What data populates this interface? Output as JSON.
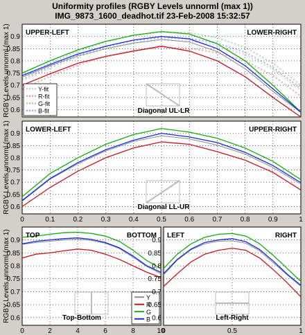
{
  "figure": {
    "title_line1": "Uniformity profiles  (RGBY Levels unnorml (max 1))",
    "title_line2": "IMG_9873_1600_deadhot.tif   23-Feb-2008 15:32:57",
    "background": "#d4d0c8"
  },
  "colors": {
    "Y": "#8a8a8a",
    "R": "#c8141e",
    "G": "#14aa14",
    "B": "#1428e6"
  },
  "chart_data": [
    {
      "id": "diag-ul-lr",
      "type": "line",
      "ylabel": "RGBY Levels unnorml (max 1)",
      "corner_left": "UPPER-LEFT",
      "corner_right": "LOWER-RIGHT",
      "caption": "Diagonal UL-LR",
      "thumb": "diag-down",
      "xlim": [
        0,
        1
      ],
      "ylim": [
        0.57,
        0.95
      ],
      "xticks": [],
      "yticks": [
        0.6,
        0.65,
        0.7,
        0.75,
        0.8,
        0.85,
        0.9
      ],
      "legend": {
        "position": "lower-left",
        "style": "dotted",
        "labels": [
          "Y-fit",
          "R-fit",
          "G-fit",
          "B-fit"
        ]
      },
      "x": [
        0,
        0.1,
        0.2,
        0.3,
        0.4,
        0.5,
        0.6,
        0.7,
        0.8,
        0.9,
        1.0
      ],
      "series": [
        {
          "key": "G",
          "values": [
            0.75,
            0.8,
            0.845,
            0.88,
            0.905,
            0.92,
            0.91,
            0.87,
            0.8,
            0.7,
            0.59
          ]
        },
        {
          "key": "Y",
          "values": [
            0.733,
            0.78,
            0.82,
            0.85,
            0.873,
            0.888,
            0.877,
            0.838,
            0.768,
            0.675,
            0.588
          ]
        },
        {
          "key": "B",
          "values": [
            0.74,
            0.785,
            0.828,
            0.86,
            0.885,
            0.9,
            0.89,
            0.85,
            0.78,
            0.685,
            0.59
          ]
        },
        {
          "key": "R",
          "values": [
            0.7,
            0.747,
            0.79,
            0.818,
            0.84,
            0.86,
            0.84,
            0.8,
            0.735,
            0.65,
            0.57
          ]
        }
      ],
      "fits": [
        {
          "key": "G",
          "values": [
            0.735,
            0.79,
            0.84,
            0.877,
            0.905,
            0.918,
            0.915,
            0.895,
            0.855,
            0.79,
            0.7
          ]
        },
        {
          "key": "Y",
          "values": [
            0.718,
            0.77,
            0.815,
            0.85,
            0.873,
            0.885,
            0.882,
            0.863,
            0.825,
            0.765,
            0.68
          ]
        },
        {
          "key": "B",
          "values": [
            0.725,
            0.776,
            0.823,
            0.858,
            0.883,
            0.895,
            0.892,
            0.873,
            0.835,
            0.773,
            0.688
          ]
        },
        {
          "key": "R",
          "values": [
            0.683,
            0.737,
            0.782,
            0.818,
            0.842,
            0.855,
            0.852,
            0.833,
            0.8,
            0.74,
            0.655
          ]
        }
      ]
    },
    {
      "id": "diag-ll-ur",
      "type": "line",
      "ylabel": "RGBY Levels unnorml (max 1)",
      "corner_left": "LOWER-LEFT",
      "corner_right": "UPPER-RIGHT",
      "caption": "Diagonal LL-UR",
      "thumb": "diag-up",
      "xlim": [
        0,
        1
      ],
      "ylim": [
        0.57,
        0.95
      ],
      "xticks": [
        0,
        0.1,
        0.2,
        0.3,
        0.4,
        0.5,
        0.6,
        0.7,
        0.8,
        0.9,
        1
      ],
      "yticks": [
        0.6,
        0.65,
        0.7,
        0.75,
        0.8,
        0.85,
        0.9
      ],
      "x": [
        0,
        0.1,
        0.2,
        0.3,
        0.4,
        0.5,
        0.6,
        0.7,
        0.8,
        0.9,
        1.0
      ],
      "series": [
        {
          "key": "G",
          "values": [
            0.64,
            0.735,
            0.8,
            0.855,
            0.895,
            0.92,
            0.905,
            0.88,
            0.84,
            0.785,
            0.71
          ]
        },
        {
          "key": "Y",
          "values": [
            0.622,
            0.712,
            0.775,
            0.828,
            0.867,
            0.89,
            0.877,
            0.852,
            0.815,
            0.76,
            0.692
          ]
        },
        {
          "key": "B",
          "values": [
            0.625,
            0.715,
            0.78,
            0.833,
            0.872,
            0.9,
            0.885,
            0.862,
            0.822,
            0.768,
            0.698
          ]
        },
        {
          "key": "R",
          "values": [
            0.6,
            0.678,
            0.745,
            0.8,
            0.84,
            0.865,
            0.855,
            0.825,
            0.79,
            0.74,
            0.668
          ]
        }
      ]
    },
    {
      "id": "top-bottom",
      "type": "line",
      "ylabel": "RGBY Levels unnorml (max 1)",
      "corner_left": "TOP",
      "corner_right": "BOTTOM",
      "caption": "Top-Bottom",
      "thumb": "vert",
      "xlim": [
        0,
        10
      ],
      "ylim": [
        0.57,
        0.95
      ],
      "xticks": [
        0,
        2,
        4,
        6,
        8,
        10
      ],
      "yticks": [
        0.6,
        0.65,
        0.7,
        0.75,
        0.8,
        0.85,
        0.9
      ],
      "legend": {
        "position": "lower-right",
        "style": "solid",
        "labels": [
          "Y",
          "R",
          "G",
          "B"
        ]
      },
      "x": [
        0,
        1,
        2,
        3,
        4,
        5,
        6,
        7,
        8,
        9,
        10
      ],
      "series": [
        {
          "key": "G",
          "values": [
            0.91,
            0.915,
            0.922,
            0.928,
            0.93,
            0.925,
            0.915,
            0.895,
            0.86,
            0.82,
            0.79
          ]
        },
        {
          "key": "Y",
          "values": [
            0.883,
            0.89,
            0.895,
            0.9,
            0.903,
            0.898,
            0.887,
            0.867,
            0.833,
            0.797,
            0.77
          ]
        },
        {
          "key": "B",
          "values": [
            0.885,
            0.895,
            0.9,
            0.905,
            0.908,
            0.902,
            0.89,
            0.87,
            0.838,
            0.8,
            0.775
          ]
        },
        {
          "key": "R",
          "values": [
            0.83,
            0.845,
            0.85,
            0.858,
            0.865,
            0.86,
            0.845,
            0.825,
            0.8,
            0.775,
            0.755
          ]
        }
      ]
    },
    {
      "id": "left-right",
      "type": "line",
      "ylabel": "",
      "corner_left": "LEFT",
      "corner_right": "RIGHT",
      "caption": "Left-Right",
      "thumb": "horiz",
      "xlim": [
        0,
        1
      ],
      "ylim": [
        0.57,
        0.95
      ],
      "xticks": [
        0,
        0.5,
        1
      ],
      "yticks": [
        0.6,
        0.65,
        0.7,
        0.75,
        0.8,
        0.85,
        0.9
      ],
      "x": [
        0,
        0.1,
        0.2,
        0.3,
        0.4,
        0.5,
        0.6,
        0.7,
        0.8,
        0.9,
        1.0
      ],
      "series": [
        {
          "key": "G",
          "values": [
            0.79,
            0.845,
            0.885,
            0.91,
            0.922,
            0.925,
            0.915,
            0.885,
            0.84,
            0.79,
            0.74
          ]
        },
        {
          "key": "Y",
          "values": [
            0.765,
            0.822,
            0.862,
            0.885,
            0.895,
            0.897,
            0.887,
            0.858,
            0.812,
            0.765,
            0.72
          ]
        },
        {
          "key": "B",
          "values": [
            0.77,
            0.825,
            0.865,
            0.89,
            0.9,
            0.905,
            0.893,
            0.863,
            0.818,
            0.768,
            0.725
          ]
        },
        {
          "key": "R",
          "values": [
            0.72,
            0.77,
            0.815,
            0.845,
            0.86,
            0.868,
            0.86,
            0.83,
            0.785,
            0.735,
            0.68
          ]
        }
      ]
    }
  ]
}
